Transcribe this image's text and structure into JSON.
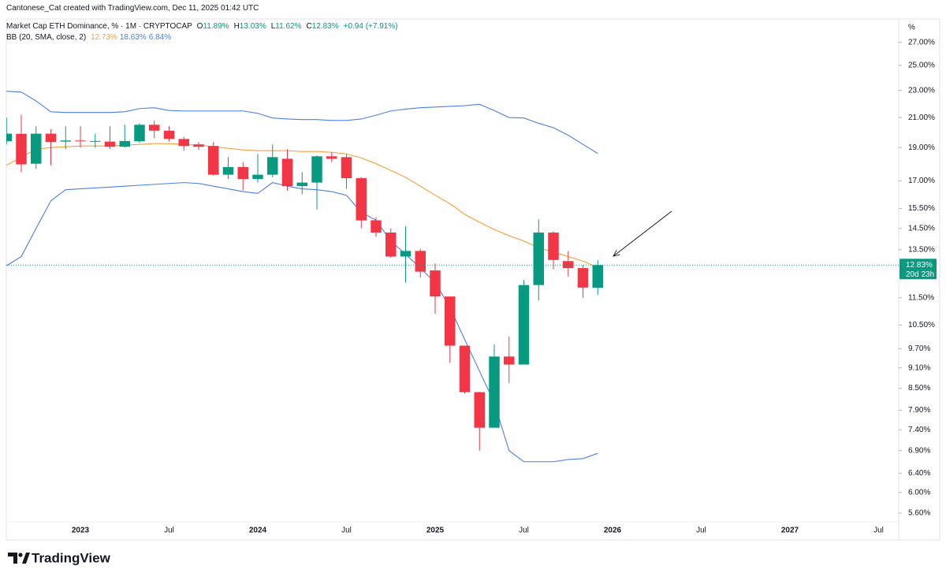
{
  "header": {
    "credit": "Cantonese_Cat created with TradingView.com, Dec 11, 2025 01:42 UTC",
    "symbol": "Market Cap ETH Dominance, % · 1M · CRYPTOCAP",
    "ohlc": [
      {
        "key": "O",
        "value": "11.89%"
      },
      {
        "key": "H",
        "value": "13.03%"
      },
      {
        "key": "L",
        "value": "11.62%"
      },
      {
        "key": "C",
        "value": "12.83%"
      }
    ],
    "change": "+0.94 (+7.91%)",
    "indicator": "BB (20, SMA, close, 2)",
    "indicator_values": [
      "12.73%",
      "18.63%",
      "6.84%"
    ]
  },
  "chart_data": {
    "type": "candlestick",
    "categories": [
      null,
      null,
      null,
      null,
      null,
      "2023",
      null,
      null,
      null,
      null,
      null,
      "Jul",
      null,
      null,
      null,
      null,
      null,
      "2024",
      null,
      null,
      null,
      null,
      null,
      "Jul",
      null,
      null,
      null,
      null,
      null,
      "2025",
      null,
      null,
      null,
      null,
      null,
      "Jul",
      null,
      null,
      null,
      null,
      null,
      "2026",
      null,
      null,
      null,
      null,
      null,
      "Jul",
      null,
      null,
      null,
      null,
      null,
      "2027",
      null,
      null,
      null,
      null,
      null,
      "Jul"
    ],
    "open": [
      19.4,
      19.89,
      18.0,
      19.9,
      19.38,
      19.45,
      19.4,
      19.38,
      19.05,
      19.4,
      20.5,
      20.1,
      19.55,
      19.2,
      19.1,
      17.35,
      17.8,
      17.1,
      17.35,
      18.3,
      16.7,
      16.9,
      18.45,
      18.4,
      17.15,
      14.9,
      14.3,
      13.2,
      13.45,
      12.6,
      11.55,
      9.8,
      8.39,
      7.45,
      9.45,
      9.2,
      12.0,
      14.3,
      13.0,
      12.7,
      11.89,
      null,
      null,
      null,
      null,
      null,
      null,
      null,
      null,
      null,
      null,
      null,
      null,
      null,
      null,
      null,
      null,
      null,
      null,
      null
    ],
    "high": [
      21.0,
      21.2,
      20.4,
      20.2,
      20.4,
      20.4,
      19.9,
      20.4,
      20.5,
      20.6,
      20.8,
      20.4,
      19.7,
      19.35,
      19.35,
      18.4,
      18.1,
      18.6,
      19.2,
      18.9,
      17.5,
      18.5,
      18.7,
      18.6,
      17.2,
      15.05,
      14.5,
      14.6,
      13.55,
      12.9,
      11.55,
      9.8,
      8.4,
      9.85,
      10.1,
      12.2,
      14.95,
      14.35,
      13.45,
      12.83,
      13.03,
      null,
      null,
      null,
      null,
      null,
      null,
      null,
      null,
      null,
      null,
      null,
      null,
      null,
      null,
      null,
      null,
      null,
      null,
      null
    ],
    "low": [
      19.2,
      17.5,
      17.7,
      17.9,
      18.9,
      19.0,
      19.0,
      18.9,
      19.0,
      19.3,
      19.6,
      19.4,
      18.8,
      18.85,
      17.3,
      17.1,
      16.45,
      16.9,
      17.2,
      16.45,
      16.25,
      15.45,
      18.1,
      16.55,
      14.5,
      14.1,
      13.15,
      12.1,
      12.3,
      10.9,
      9.25,
      8.35,
      6.9,
      7.45,
      8.65,
      9.2,
      11.4,
      12.65,
      12.35,
      11.5,
      11.62,
      null,
      null,
      null,
      null,
      null,
      null,
      null,
      null,
      null,
      null,
      null,
      null,
      null,
      null,
      null,
      null,
      null,
      null,
      null
    ],
    "close": [
      19.9,
      17.96,
      19.9,
      19.35,
      19.45,
      19.4,
      19.42,
      19.05,
      19.42,
      20.5,
      20.1,
      19.55,
      19.1,
      19.05,
      17.35,
      17.8,
      17.1,
      17.35,
      18.4,
      16.7,
      16.9,
      18.45,
      18.3,
      17.15,
      14.89,
      14.3,
      13.2,
      13.45,
      12.55,
      11.55,
      9.8,
      8.39,
      7.45,
      9.45,
      9.2,
      12.0,
      14.3,
      13.05,
      12.7,
      11.9,
      12.83,
      null,
      null,
      null,
      null,
      null,
      null,
      null,
      null,
      null,
      null,
      null,
      null,
      null,
      null,
      null,
      null,
      null,
      null,
      null
    ],
    "up_color": "#089981",
    "down_color": "#f23645",
    "bands": {
      "basis": {
        "color": "#f7a03a",
        "values": [
          17.9,
          18.4,
          18.9,
          19.0,
          19.05,
          19.1,
          19.1,
          19.1,
          19.15,
          19.2,
          19.25,
          19.25,
          19.2,
          19.15,
          19.05,
          18.95,
          18.85,
          18.8,
          18.8,
          18.8,
          18.75,
          18.75,
          18.7,
          18.6,
          18.35,
          18.0,
          17.6,
          17.2,
          16.7,
          16.2,
          15.75,
          15.2,
          14.8,
          14.45,
          14.15,
          13.9,
          13.6,
          13.4,
          13.2,
          13.0,
          12.73,
          null,
          null,
          null,
          null,
          null,
          null,
          null,
          null,
          null,
          null,
          null,
          null,
          null,
          null,
          null,
          null,
          null,
          null,
          null
        ]
      },
      "upper": {
        "color": "#4b7fe8",
        "values": [
          22.93,
          22.87,
          22.2,
          21.41,
          21.36,
          21.36,
          21.36,
          21.36,
          21.41,
          21.64,
          21.7,
          21.5,
          21.47,
          21.47,
          21.47,
          21.47,
          21.47,
          21.3,
          20.97,
          20.9,
          20.86,
          20.86,
          20.8,
          20.8,
          20.9,
          21.17,
          21.47,
          21.6,
          21.7,
          21.75,
          21.8,
          21.85,
          21.95,
          21.5,
          21.0,
          20.97,
          20.6,
          20.3,
          19.8,
          19.2,
          18.63,
          null,
          null,
          null,
          null,
          null,
          null,
          null,
          null,
          null,
          null,
          null,
          null,
          null,
          null,
          null,
          null,
          null,
          null,
          null
        ]
      },
      "lower": {
        "color": "#4b7fe8",
        "values": [
          12.8,
          13.2,
          14.5,
          15.9,
          16.5,
          16.55,
          16.6,
          16.65,
          16.7,
          16.75,
          16.8,
          16.85,
          16.9,
          16.85,
          16.7,
          16.55,
          16.4,
          16.3,
          16.9,
          16.7,
          16.55,
          16.5,
          16.4,
          16.2,
          15.3,
          14.9,
          13.9,
          13.3,
          12.7,
          12.1,
          11.14,
          10.0,
          9.0,
          8.1,
          6.9,
          6.65,
          6.65,
          6.65,
          6.7,
          6.72,
          6.84,
          null,
          null,
          null,
          null,
          null,
          null,
          null,
          null,
          null,
          null,
          null,
          null,
          null,
          null,
          null,
          null,
          null,
          null,
          null
        ]
      }
    },
    "log_scale": true,
    "grid": false,
    "ylim": [
      5.44,
      29.2
    ],
    "y_unit": "%",
    "yticks": [
      {
        "value": 27,
        "label": "27.00%"
      },
      {
        "value": 25,
        "label": "25.00%"
      },
      {
        "value": 23,
        "label": "23.00%"
      },
      {
        "value": 21,
        "label": "21.00%"
      },
      {
        "value": 19,
        "label": "19.00%"
      },
      {
        "value": 17,
        "label": "17.00%"
      },
      {
        "value": 15.5,
        "label": "15.50%"
      },
      {
        "value": 14.5,
        "label": "14.50%"
      },
      {
        "value": 13.5,
        "label": "13.50%"
      },
      {
        "value": 11.5,
        "label": "11.50%"
      },
      {
        "value": 10.5,
        "label": "10.50%"
      },
      {
        "value": 9.7,
        "label": "9.70%"
      },
      {
        "value": 9.1,
        "label": "9.10%"
      },
      {
        "value": 8.5,
        "label": "8.50%"
      },
      {
        "value": 7.9,
        "label": "7.90%"
      },
      {
        "value": 7.4,
        "label": "7.40%"
      },
      {
        "value": 6.9,
        "label": "6.90%"
      },
      {
        "value": 6.4,
        "label": "6.40%"
      },
      {
        "value": 6,
        "label": "6.00%"
      },
      {
        "value": 5.6,
        "label": "5.60%"
      }
    ],
    "last_price": {
      "value": 12.83,
      "label": "12.83%",
      "countdown": "20d 23h",
      "color": "#089981"
    }
  },
  "footer": {
    "brand": "TradingView"
  }
}
